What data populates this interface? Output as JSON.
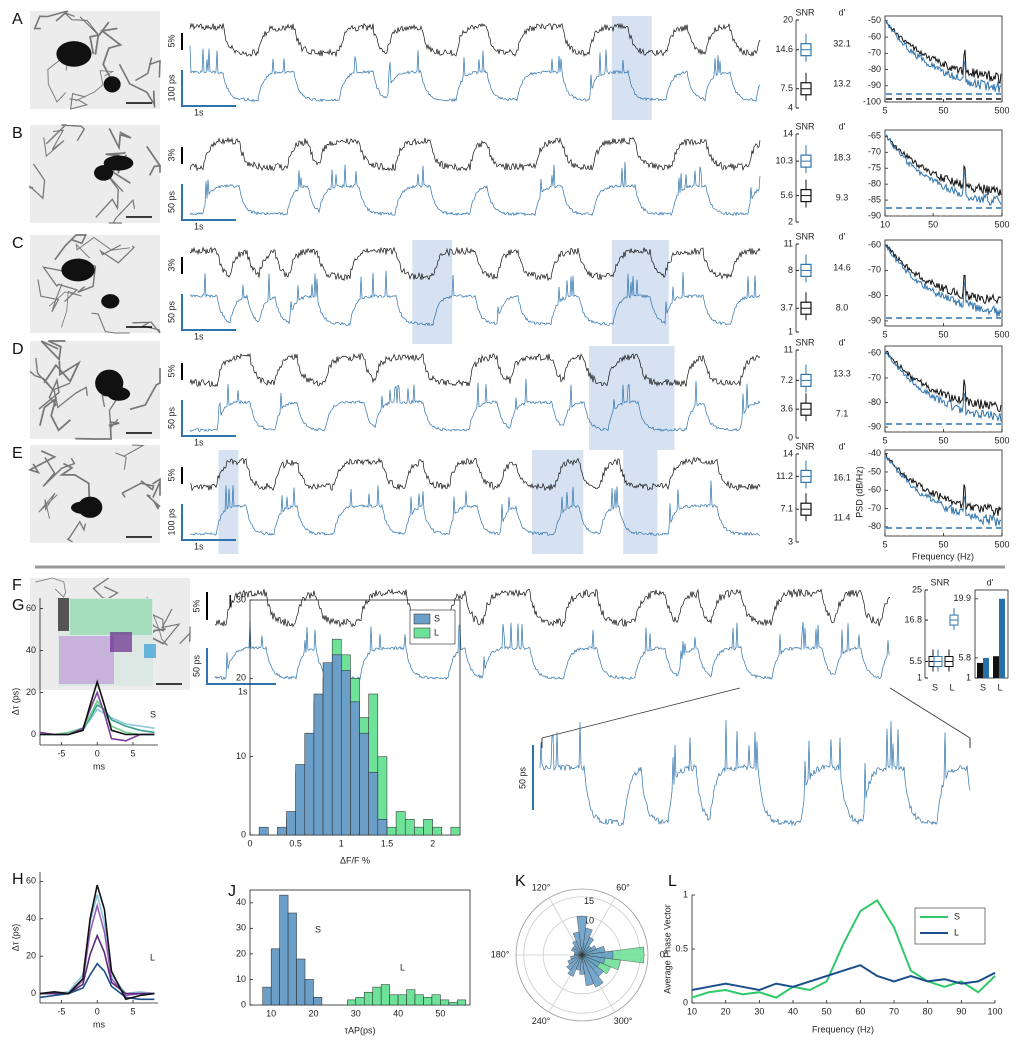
{
  "rows": [
    {
      "label": "A",
      "trace_scale": "5%",
      "ps_scale": "100 ps",
      "time_scale": "1s",
      "snr": {
        "title": "SNR",
        "ticks": [
          4,
          7.5,
          14.6,
          20
        ]
      },
      "dprime": {
        "title": "d'",
        "values": [
          32.1,
          13.2
        ]
      },
      "psd": {
        "xlim": [
          5,
          500
        ],
        "xticks": [
          5,
          50,
          500
        ],
        "ylim": [
          -100,
          -47
        ],
        "yticks": [
          -100,
          -90,
          -80,
          -70,
          -60,
          -50
        ]
      }
    },
    {
      "label": "B",
      "trace_scale": "3%",
      "ps_scale": "50 ps",
      "time_scale": "1s",
      "snr": {
        "title": "SNR",
        "ticks": [
          2,
          5.6,
          10.3,
          14
        ]
      },
      "dprime": {
        "title": "d'",
        "values": [
          18.3,
          9.3
        ]
      },
      "psd": {
        "xlim": [
          10,
          500
        ],
        "xticks": [
          10,
          50,
          500
        ],
        "ylim": [
          -90,
          -63
        ],
        "yticks": [
          -90,
          -85,
          -80,
          -75,
          -70,
          -65
        ]
      }
    },
    {
      "label": "C",
      "trace_scale": "3%",
      "ps_scale": "50 ps",
      "time_scale": "1s",
      "snr": {
        "title": "SNR",
        "ticks": [
          1,
          3.7,
          8,
          11
        ]
      },
      "dprime": {
        "title": "d'",
        "values": [
          14.6,
          {
            "value": 8,
            "label": "8.0"
          }
        ]
      },
      "psd": {
        "xlim": [
          5,
          500
        ],
        "xticks": [
          5,
          50,
          500
        ],
        "ylim": [
          -92,
          -58
        ],
        "yticks": [
          -90,
          -80,
          -70,
          -60
        ]
      }
    },
    {
      "label": "D",
      "trace_scale": "5%",
      "ps_scale": "50 ps",
      "time_scale": "1s",
      "snr": {
        "title": "SNR",
        "ticks": [
          0,
          3.6,
          7.2,
          11
        ]
      },
      "dprime": {
        "title": "d'",
        "values": [
          13.3,
          7.1
        ]
      },
      "psd": {
        "xlim": [
          5,
          500
        ],
        "xticks": [
          5,
          50,
          500
        ],
        "ylim": [
          -92,
          -57
        ],
        "yticks": [
          -90,
          -80,
          -70,
          -60
        ]
      }
    },
    {
      "label": "E",
      "trace_scale": "5%",
      "ps_scale": "100 ps",
      "time_scale": "1s",
      "snr": {
        "title": "SNR",
        "ticks": [
          3,
          7.1,
          11.2,
          14
        ]
      },
      "dprime": {
        "title": "d'",
        "values": [
          16.1,
          11.4
        ]
      },
      "psd": {
        "xlim": [
          5,
          500
        ],
        "xticks": [
          5,
          50,
          500
        ],
        "ylim": [
          -85,
          -38
        ],
        "yticks": [
          -80,
          -70,
          -60,
          -50,
          -40
        ],
        "ylabel": "PSD (dB/Hz)",
        "xlabel": "Frequency (Hz)"
      }
    }
  ],
  "F": {
    "label": "F",
    "trace_scale": "5%",
    "ps_scale": "50 ps",
    "time_scale": "1s",
    "snr": {
      "title": "SNR",
      "ticks": [
        1,
        5.5,
        16.8,
        25
      ],
      "categories": [
        "S",
        "L"
      ]
    },
    "dprime": {
      "title": "d'",
      "yticks": [
        1,
        5.8,
        19.9
      ],
      "ylim": [
        1,
        22
      ],
      "categories": [
        "S",
        "L"
      ],
      "series": [
        {
          "color": "#111111",
          "values": [
            4.6,
            6.2
          ]
        },
        {
          "color": "#2a6fa8",
          "values": [
            5.8,
            19.9
          ]
        }
      ]
    },
    "zoom_scale": "50 ps"
  },
  "G": {
    "label": "G",
    "ylabel": "Δτ (ps)",
    "xlabel": "ms",
    "annotation": "S",
    "xlim": [
      -8,
      8.5
    ],
    "xticks": [
      -5,
      0,
      5
    ],
    "ylim": [
      -5,
      65
    ],
    "yticks": [
      0,
      20,
      40,
      60
    ],
    "x": [
      -8,
      -6,
      -4,
      -2,
      -1,
      0,
      1,
      2,
      4,
      6,
      8
    ],
    "series": [
      {
        "color": "#8fc8dc",
        "values": [
          0,
          0,
          1,
          3,
          7,
          12,
          10,
          8,
          5,
          4,
          3
        ]
      },
      {
        "color": "#3aa08c",
        "values": [
          0,
          0,
          0,
          2,
          8,
          14,
          12,
          7,
          4,
          2,
          1
        ]
      },
      {
        "color": "#6fd08a",
        "values": [
          0,
          0,
          1,
          3,
          9,
          16,
          11,
          4,
          1,
          0,
          0
        ]
      },
      {
        "color": "#7b3f9a",
        "values": [
          1,
          0,
          0,
          3,
          12,
          20,
          10,
          -2,
          -3,
          0,
          0
        ]
      },
      {
        "color": "#111111",
        "values": [
          0,
          0,
          0,
          2,
          14,
          25,
          14,
          2,
          0,
          0,
          0
        ]
      }
    ]
  },
  "H": {
    "label": "H",
    "ylabel": "Δτ (ps)",
    "xlabel": "ms",
    "annotation": "L",
    "xlim": [
      -8,
      8.5
    ],
    "xticks": [
      -5,
      0,
      5
    ],
    "ylim": [
      -5,
      65
    ],
    "yticks": [
      0,
      20,
      40,
      60
    ],
    "x": [
      -8,
      -6,
      -4,
      -2,
      -1,
      0,
      1,
      2,
      4,
      6,
      8
    ],
    "series": [
      {
        "color": "#8fc8dc",
        "values": [
          0,
          0,
          1,
          10,
          38,
          53,
          38,
          10,
          0,
          1,
          0
        ]
      },
      {
        "color": "#9b5fb8",
        "values": [
          0,
          0,
          0,
          7,
          33,
          47,
          33,
          8,
          -1,
          0,
          0
        ]
      },
      {
        "color": "#5a2a7a",
        "values": [
          0,
          0,
          0,
          5,
          21,
          31,
          22,
          6,
          0,
          0,
          0
        ]
      },
      {
        "color": "#1a4f8c",
        "values": [
          -2,
          -1,
          0,
          3,
          10,
          16,
          12,
          4,
          -2,
          -3,
          -3
        ]
      },
      {
        "color": "#111111",
        "values": [
          0,
          1,
          0,
          8,
          40,
          58,
          45,
          12,
          -3,
          -1,
          0
        ]
      }
    ]
  },
  "I": {
    "label": "I",
    "type": "histogram",
    "xlabel": "ΔF/F %",
    "xlim": [
      0,
      2.3
    ],
    "xticks": [
      0,
      0.5,
      1,
      1.5,
      2
    ],
    "ylim": [
      0,
      30
    ],
    "yticks": [
      0,
      10,
      20,
      30
    ],
    "legend": "upper right",
    "bins": [
      0,
      0.1,
      0.2,
      0.3,
      0.4,
      0.5,
      0.6,
      0.7,
      0.8,
      0.9,
      1.0,
      1.1,
      1.2,
      1.3,
      1.4,
      1.5,
      1.6,
      1.7,
      1.8,
      1.9,
      2.0,
      2.1,
      2.2,
      2.3
    ],
    "series": [
      {
        "name": "S",
        "color": "#6b9fc8",
        "values": [
          0,
          1,
          0,
          1,
          3,
          9,
          13,
          18,
          22,
          23,
          21,
          17,
          13,
          8,
          2,
          0,
          0,
          0,
          0,
          0,
          0,
          0,
          0
        ]
      },
      {
        "name": "L",
        "color": "#6fe29a",
        "values": [
          0,
          0,
          0,
          0,
          2,
          8,
          12,
          17,
          20,
          25,
          23,
          20,
          15,
          18,
          10,
          1,
          3,
          2,
          1,
          2,
          1,
          0,
          1
        ]
      }
    ]
  },
  "J": {
    "label": "J",
    "type": "histogram",
    "xlabel": "τAP(ps)",
    "annotations": [
      "S",
      "L"
    ],
    "xlim": [
      5,
      57
    ],
    "xticks": [
      10,
      20,
      30,
      40,
      50
    ],
    "ylim": [
      0,
      45
    ],
    "yticks": [
      0,
      10,
      20,
      30,
      40
    ],
    "bins": [
      8,
      10,
      12,
      14,
      16,
      18,
      20,
      22,
      24,
      26,
      28,
      30,
      32,
      34,
      36,
      38,
      40,
      42,
      44,
      46,
      48,
      50,
      52,
      54,
      56
    ],
    "series": [
      {
        "name": "S",
        "color": "#6b9fc8",
        "values": [
          7,
          22,
          43,
          36,
          18,
          10,
          3,
          0,
          0,
          0,
          0,
          0,
          0,
          0,
          0,
          0,
          0,
          0,
          0,
          0,
          0,
          0,
          0,
          0
        ]
      },
      {
        "name": "L",
        "color": "#6fe29a",
        "values": [
          0,
          0,
          0,
          0,
          0,
          0,
          0,
          0,
          0,
          0,
          2,
          3,
          5,
          7,
          8,
          4,
          4,
          6,
          4,
          3,
          4,
          2,
          1,
          2
        ]
      }
    ]
  },
  "K": {
    "label": "K",
    "type": "polar",
    "rlim": [
      0,
      17
    ],
    "rticks": [
      10,
      15
    ],
    "angles": [
      {
        "value": 0,
        "label": "0°"
      },
      {
        "value": 60,
        "label": "60°"
      },
      {
        "value": 120,
        "label": "120°"
      },
      {
        "value": 180,
        "label": "180°"
      },
      {
        "value": 240,
        "label": "240°"
      },
      {
        "value": 300,
        "label": "300°"
      }
    ],
    "series": [
      {
        "color": "#6fe29a",
        "values": [
          16,
          5,
          3,
          2,
          2,
          3,
          2,
          1,
          1,
          1,
          1,
          1,
          1,
          1,
          1,
          1,
          1,
          1,
          2,
          2,
          3,
          5,
          8,
          10
        ]
      },
      {
        "color": "#6b9fc8",
        "values": [
          8,
          6,
          4,
          3,
          5,
          7,
          10,
          6,
          4,
          3,
          3,
          2,
          2,
          3,
          4,
          5,
          6,
          4,
          5,
          8,
          9,
          7,
          5,
          6
        ]
      }
    ]
  },
  "L": {
    "label": "L",
    "type": "line",
    "xlabel": "Frequency (Hz)",
    "ylabel": "Average Phase Vector",
    "xlim": [
      10,
      100
    ],
    "xticks": [
      10,
      20,
      30,
      40,
      50,
      60,
      70,
      80,
      90,
      100
    ],
    "ylim": [
      0,
      1
    ],
    "yticks": [
      0,
      0.5,
      1
    ],
    "legend": "upper right",
    "x": [
      10,
      15,
      20,
      25,
      30,
      35,
      40,
      45,
      50,
      55,
      60,
      65,
      70,
      75,
      80,
      85,
      90,
      95,
      100
    ],
    "series": [
      {
        "name": "S",
        "color": "#2fc96a",
        "values": [
          0.05,
          0.1,
          0.12,
          0.08,
          0.1,
          0.05,
          0.15,
          0.12,
          0.2,
          0.55,
          0.85,
          0.95,
          0.7,
          0.3,
          0.2,
          0.15,
          0.2,
          0.1,
          0.25
        ]
      },
      {
        "name": "L",
        "color": "#1a4f8c",
        "values": [
          0.12,
          0.15,
          0.18,
          0.15,
          0.12,
          0.18,
          0.15,
          0.2,
          0.25,
          0.3,
          0.35,
          0.25,
          0.2,
          0.25,
          0.2,
          0.22,
          0.18,
          0.2,
          0.28
        ]
      }
    ]
  }
}
